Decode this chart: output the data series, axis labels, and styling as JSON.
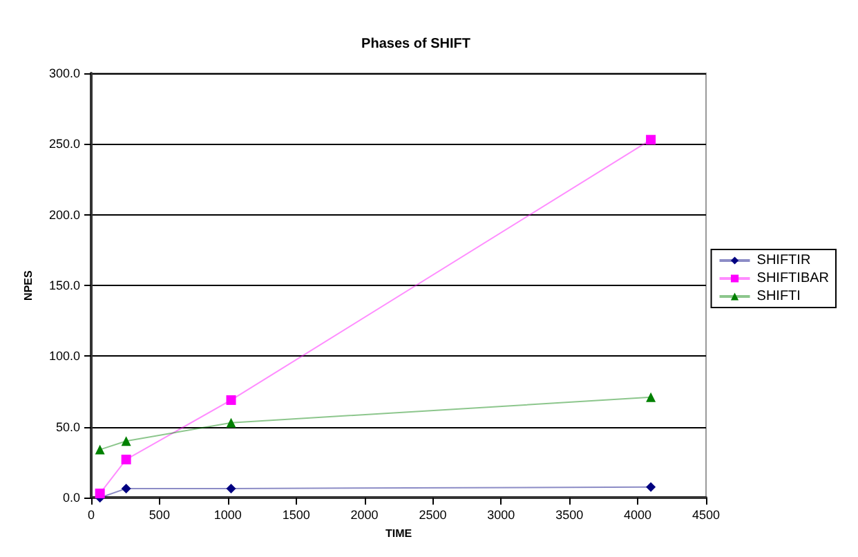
{
  "chart_data": {
    "type": "line",
    "title": "Phases of SHIFT",
    "xlabel": "TIME",
    "ylabel": "NPES",
    "x": [
      64,
      256,
      1024,
      4096
    ],
    "series": [
      {
        "name": "SHIFTIR",
        "color": "#000080",
        "marker": "diamond",
        "values": [
          0,
          6.5,
          6.5,
          7.5
        ]
      },
      {
        "name": "SHIFTIBAR",
        "color": "#ff00ff",
        "marker": "square",
        "values": [
          3,
          27,
          69,
          253
        ]
      },
      {
        "name": "SHIFTI",
        "color": "#008000",
        "marker": "triangle",
        "values": [
          34,
          40,
          53,
          71
        ]
      }
    ],
    "xlim": [
      0,
      4500
    ],
    "xticks": [
      0,
      500,
      1000,
      1500,
      2000,
      2500,
      3000,
      3500,
      4000,
      4500
    ],
    "ylim": [
      0,
      300
    ],
    "yticks": [
      {
        "value": 0,
        "label": "0.0"
      },
      {
        "value": 50,
        "label": "50.0"
      },
      {
        "value": 100,
        "label": "100.0"
      },
      {
        "value": 150,
        "label": "150.0"
      },
      {
        "value": 200,
        "label": "200.0"
      },
      {
        "value": 250,
        "label": "250.0"
      },
      {
        "value": 300,
        "label": "300.0"
      }
    ],
    "grid": "y",
    "legend": "right"
  }
}
